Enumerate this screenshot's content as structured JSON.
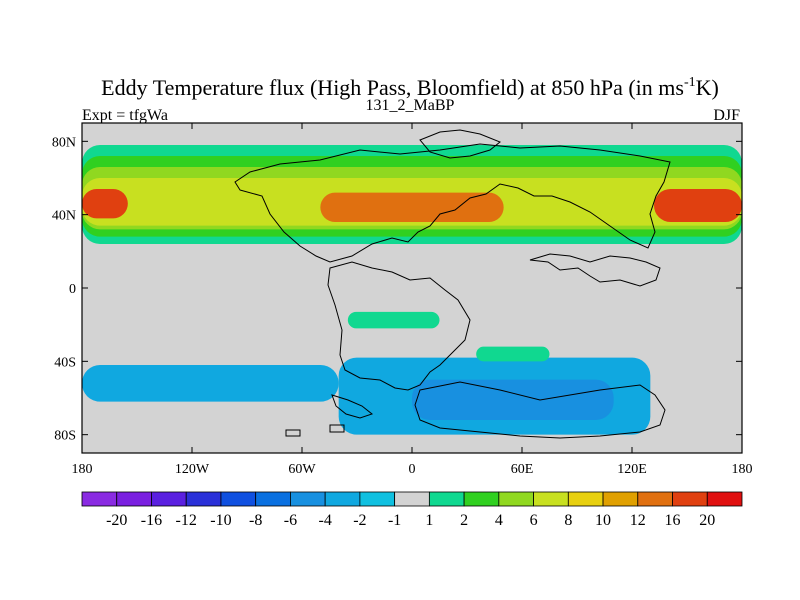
{
  "chart_data": {
    "type": "heatmap",
    "title": "Eddy Temperature flux (High Pass, Bloomfield) at 850 hPa (in ms",
    "title_superscript": "-1",
    "title_end": "K)",
    "left_subtitle": "Expt = tfgWa",
    "center_subtitle": "131_2_MaBP",
    "right_subtitle": "DJF",
    "x_ticks": [
      {
        "value": -180,
        "label": "180"
      },
      {
        "value": -120,
        "label": "120W"
      },
      {
        "value": -60,
        "label": "60W"
      },
      {
        "value": 0,
        "label": "0"
      },
      {
        "value": 60,
        "label": "60E"
      },
      {
        "value": 120,
        "label": "120E"
      },
      {
        "value": 180,
        "label": "180"
      }
    ],
    "y_ticks": [
      {
        "value": 80,
        "label": "80N"
      },
      {
        "value": 40,
        "label": "40N"
      },
      {
        "value": 0,
        "label": "0"
      },
      {
        "value": -40,
        "label": "40S"
      },
      {
        "value": -80,
        "label": "80S"
      }
    ],
    "xlim": [
      -180,
      180
    ],
    "ylim": [
      -90,
      90
    ],
    "background_color": "#d3d3d3",
    "colorbar": {
      "levels": [
        "-20",
        "-16",
        "-12",
        "-10",
        "-8",
        "-6",
        "-4",
        "-2",
        "-1",
        "1",
        "2",
        "4",
        "6",
        "8",
        "10",
        "12",
        "16",
        "20"
      ],
      "colors": [
        "#8a2be2",
        "#7a1fe0",
        "#5a20e0",
        "#2a30d8",
        "#1050e0",
        "#0a70e0",
        "#1890e0",
        "#10a8e0",
        "#10c0e0",
        "#d3d3d3",
        "#10d890",
        "#30d020",
        "#90d820",
        "#c8e020",
        "#e8d010",
        "#e0a000",
        "#e07010",
        "#e04010",
        "#e01010"
      ]
    },
    "regions": [
      {
        "name": "nh-band-outer",
        "color": "#10d890",
        "lon": [
          -180,
          180
        ],
        "lat": [
          24,
          78
        ]
      },
      {
        "name": "nh-band-green",
        "color": "#30d020",
        "lon": [
          -180,
          180
        ],
        "lat": [
          28,
          72
        ]
      },
      {
        "name": "nh-band-lime",
        "color": "#90d820",
        "lon": [
          -180,
          180
        ],
        "lat": [
          32,
          66
        ]
      },
      {
        "name": "nh-band-yellow",
        "color": "#c8e020",
        "lon": [
          -180,
          180
        ],
        "lat": [
          34,
          60
        ]
      },
      {
        "name": "pacific-west-max",
        "color": "#e04010",
        "lon": [
          -180,
          -155
        ],
        "lat": [
          38,
          54
        ]
      },
      {
        "name": "pacific-east-max",
        "color": "#e04010",
        "lon": [
          132,
          180
        ],
        "lat": [
          36,
          54
        ]
      },
      {
        "name": "atlantic-max",
        "color": "#e07010",
        "lon": [
          -50,
          50
        ],
        "lat": [
          36,
          52
        ]
      },
      {
        "name": "sh-atlantic-band",
        "color": "#10a8e0",
        "lon": [
          -180,
          -40
        ],
        "lat": [
          -62,
          -42
        ]
      },
      {
        "name": "sh-indian-band",
        "color": "#10a8e0",
        "lon": [
          -40,
          130
        ],
        "lat": [
          -80,
          -38
        ]
      },
      {
        "name": "sh-indian-core",
        "color": "#1890e0",
        "lon": [
          0,
          110
        ],
        "lat": [
          -72,
          -50
        ]
      },
      {
        "name": "tropical-atlantic-patch",
        "color": "#10d890",
        "lon": [
          -35,
          15
        ],
        "lat": [
          -22,
          -13
        ]
      },
      {
        "name": "indian-ocean-patch",
        "color": "#10d890",
        "lon": [
          35,
          75
        ],
        "lat": [
          -40,
          -32
        ]
      }
    ]
  }
}
